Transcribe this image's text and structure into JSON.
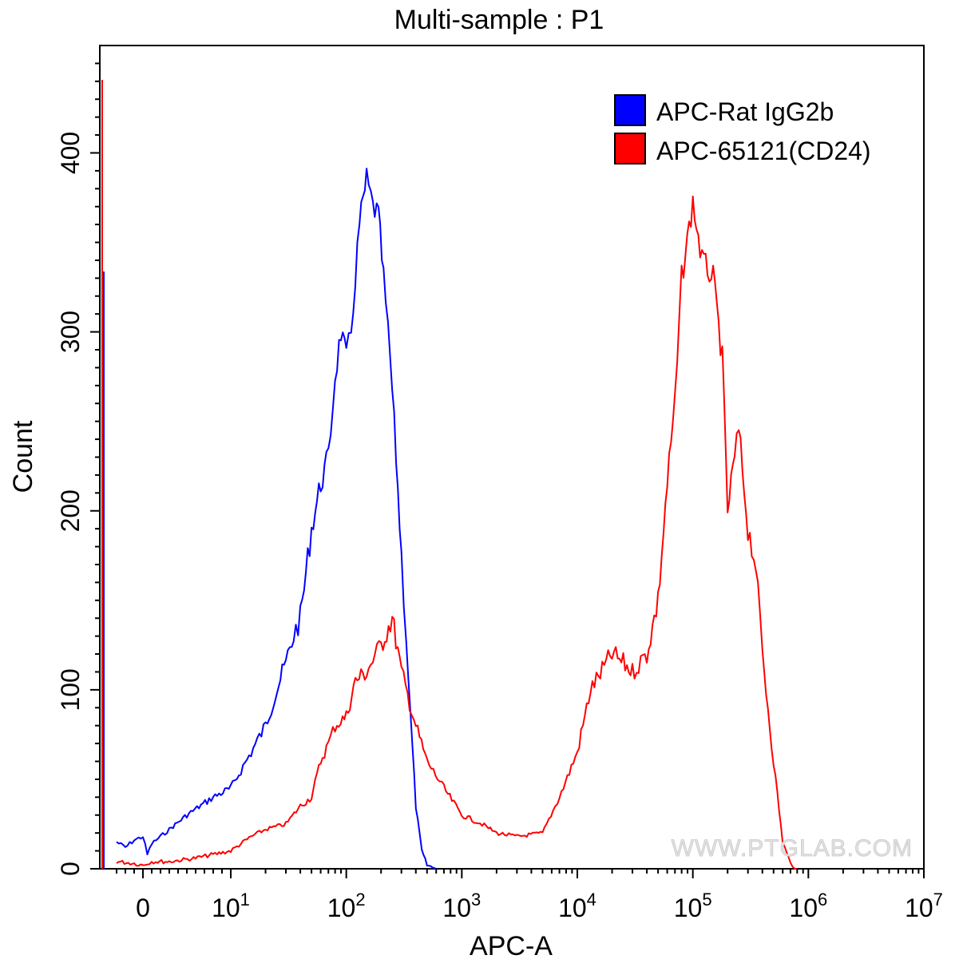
{
  "chart_data": {
    "type": "line",
    "title": "Multi-sample : P1",
    "xlabel": "APC-A",
    "ylabel": "Count",
    "xscale": "biexponential",
    "xlim": [
      -3,
      10000000
    ],
    "ylim": [
      0,
      460
    ],
    "grid": false,
    "legend_position": "top-right",
    "watermark": "WWW.PTGLAB.COM",
    "x_ticks": [
      {
        "base": "0",
        "exp": ""
      },
      {
        "base": "10",
        "exp": "1"
      },
      {
        "base": "10",
        "exp": "2"
      },
      {
        "base": "10",
        "exp": "3"
      },
      {
        "base": "10",
        "exp": "4"
      },
      {
        "base": "10",
        "exp": "5"
      },
      {
        "base": "10",
        "exp": "6"
      },
      {
        "base": "10",
        "exp": "7"
      }
    ],
    "y_ticks": [
      "0",
      "100",
      "200",
      "300",
      "400"
    ],
    "series": [
      {
        "name": "APC-Rat IgG2b",
        "color": "#0000ff",
        "points": [
          [
            -3,
            15
          ],
          [
            -2,
            12
          ],
          [
            -1,
            16
          ],
          [
            0,
            18
          ],
          [
            0.5,
            8
          ],
          [
            1,
            14
          ],
          [
            2,
            18
          ],
          [
            3,
            22
          ],
          [
            5,
            30
          ],
          [
            8,
            40
          ],
          [
            10,
            45
          ],
          [
            15,
            65
          ],
          [
            20,
            80
          ],
          [
            25,
            100
          ],
          [
            30,
            115
          ],
          [
            35,
            130
          ],
          [
            40,
            140
          ],
          [
            50,
            190
          ],
          [
            60,
            215
          ],
          [
            70,
            230
          ],
          [
            80,
            275
          ],
          [
            90,
            300
          ],
          [
            100,
            285
          ],
          [
            110,
            300
          ],
          [
            130,
            360
          ],
          [
            150,
            385
          ],
          [
            170,
            370
          ],
          [
            190,
            365
          ],
          [
            210,
            330
          ],
          [
            240,
            285
          ],
          [
            270,
            230
          ],
          [
            300,
            175
          ],
          [
            330,
            130
          ],
          [
            360,
            85
          ],
          [
            400,
            35
          ],
          [
            450,
            10
          ],
          [
            500,
            2
          ],
          [
            600,
            0
          ]
        ]
      },
      {
        "name": "APC-65121(CD24)",
        "color": "#ff0000",
        "points": [
          [
            -3,
            4
          ],
          [
            -1,
            3
          ],
          [
            0,
            2
          ],
          [
            1,
            4
          ],
          [
            3,
            4
          ],
          [
            6,
            6
          ],
          [
            10,
            10
          ],
          [
            15,
            18
          ],
          [
            20,
            22
          ],
          [
            30,
            25
          ],
          [
            40,
            35
          ],
          [
            50,
            40
          ],
          [
            60,
            60
          ],
          [
            70,
            70
          ],
          [
            80,
            80
          ],
          [
            100,
            85
          ],
          [
            120,
            105
          ],
          [
            150,
            110
          ],
          [
            200,
            125
          ],
          [
            250,
            140
          ],
          [
            300,
            110
          ],
          [
            400,
            80
          ],
          [
            500,
            60
          ],
          [
            700,
            45
          ],
          [
            1000,
            30
          ],
          [
            1500,
            25
          ],
          [
            2000,
            20
          ],
          [
            3000,
            18
          ],
          [
            5000,
            20
          ],
          [
            7000,
            40
          ],
          [
            10000,
            65
          ],
          [
            13000,
            100
          ],
          [
            20000,
            120
          ],
          [
            25000,
            115
          ],
          [
            30000,
            110
          ],
          [
            40000,
            120
          ],
          [
            50000,
            150
          ],
          [
            60000,
            215
          ],
          [
            70000,
            260
          ],
          [
            80000,
            330
          ],
          [
            100000,
            372
          ],
          [
            120000,
            340
          ],
          [
            150000,
            330
          ],
          [
            180000,
            285
          ],
          [
            200000,
            200
          ],
          [
            230000,
            230
          ],
          [
            250000,
            245
          ],
          [
            300000,
            190
          ],
          [
            350000,
            170
          ],
          [
            400000,
            120
          ],
          [
            500000,
            60
          ],
          [
            600000,
            15
          ],
          [
            700000,
            3
          ],
          [
            800000,
            0
          ]
        ]
      }
    ]
  }
}
